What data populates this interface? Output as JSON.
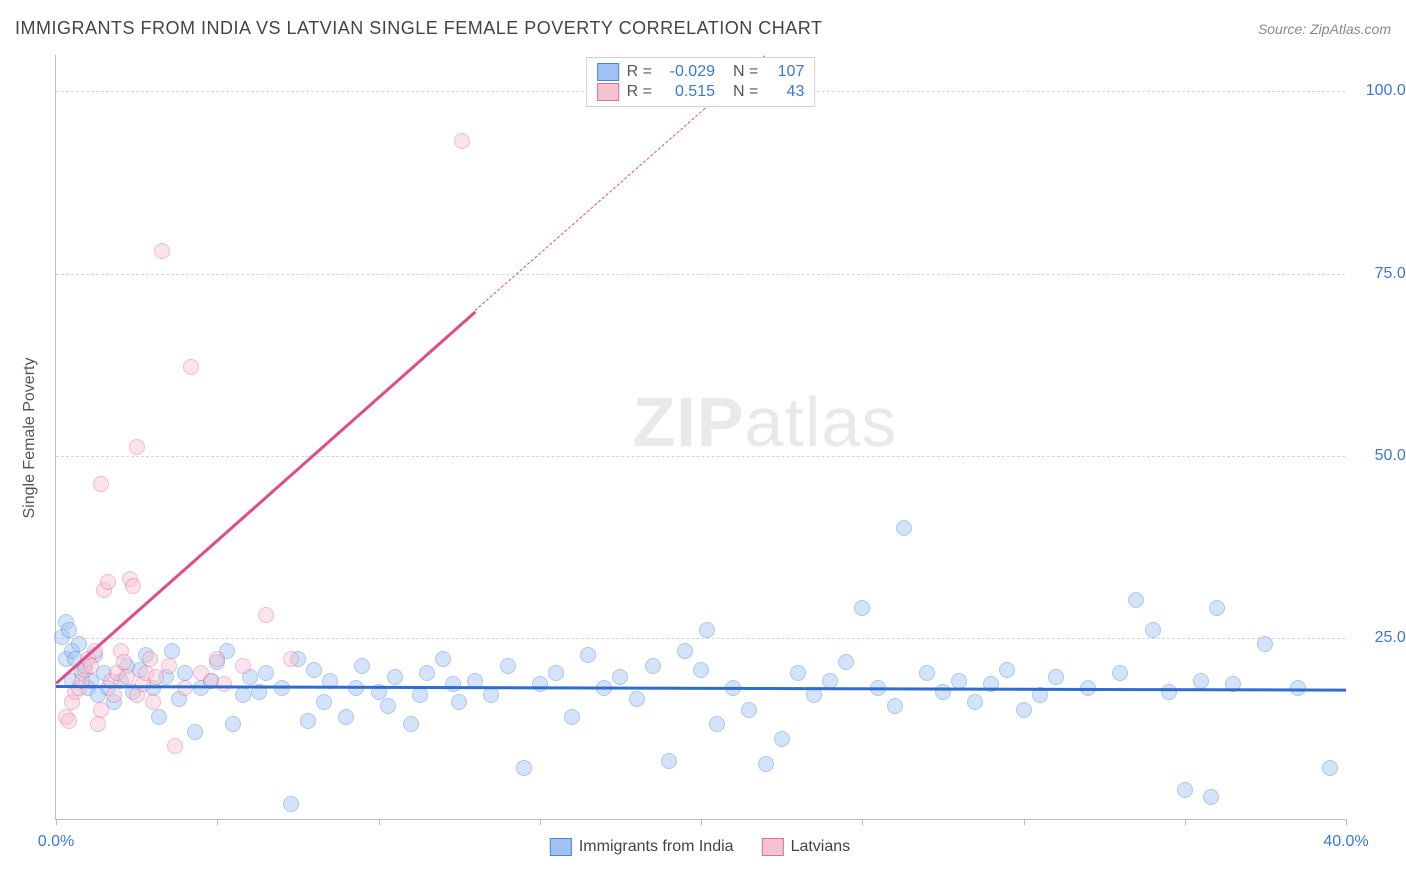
{
  "title": "IMMIGRANTS FROM INDIA VS LATVIAN SINGLE FEMALE POVERTY CORRELATION CHART",
  "source": "Source: ZipAtlas.com",
  "watermark": "ZIPatlas",
  "y_axis_title": "Single Female Poverty",
  "chart": {
    "type": "scatter",
    "xlim": [
      0,
      40
    ],
    "ylim": [
      0,
      105
    ],
    "xtick_positions": [
      0,
      5,
      10,
      15,
      20,
      25,
      30,
      35,
      40
    ],
    "xtick_labels": {
      "0": "0.0%",
      "40": "40.0%"
    },
    "ytick_positions": [
      25,
      50,
      75,
      100
    ],
    "ytick_labels": [
      "25.0%",
      "50.0%",
      "75.0%",
      "100.0%"
    ],
    "grid_color": "#d5d5d5",
    "grid_dash": true,
    "background_color": "#ffffff",
    "point_radius": 8,
    "point_opacity": 0.45,
    "series": [
      {
        "name": "Immigrants from India",
        "color_fill": "#9fc2f2",
        "color_stroke": "#4c86d6",
        "r": -0.029,
        "n": 107,
        "trendline": {
          "x0": 0,
          "y0": 18.5,
          "x1": 40,
          "y1": 18.0,
          "color": "#2e6cd0",
          "width": 2.5
        },
        "points": [
          [
            0.2,
            25
          ],
          [
            0.3,
            27
          ],
          [
            0.3,
            22
          ],
          [
            0.4,
            26
          ],
          [
            0.5,
            23
          ],
          [
            0.5,
            19
          ],
          [
            0.6,
            22
          ],
          [
            0.7,
            24
          ],
          [
            0.8,
            20
          ],
          [
            0.9,
            21
          ],
          [
            1.0,
            18
          ],
          [
            1.1,
            19
          ],
          [
            1.2,
            22.5
          ],
          [
            1.3,
            17
          ],
          [
            1.5,
            20
          ],
          [
            1.6,
            18
          ],
          [
            1.8,
            16
          ],
          [
            2.0,
            19
          ],
          [
            2.2,
            21
          ],
          [
            2.4,
            17.5
          ],
          [
            2.6,
            20.5
          ],
          [
            2.8,
            22.5
          ],
          [
            3.0,
            18
          ],
          [
            3.2,
            14
          ],
          [
            3.4,
            19.5
          ],
          [
            3.6,
            23
          ],
          [
            3.8,
            16.5
          ],
          [
            4.0,
            20
          ],
          [
            4.3,
            12
          ],
          [
            4.5,
            18
          ],
          [
            4.8,
            19
          ],
          [
            5.0,
            21.5
          ],
          [
            5.3,
            23
          ],
          [
            5.5,
            13
          ],
          [
            5.8,
            17
          ],
          [
            6.0,
            19.5
          ],
          [
            6.3,
            17.5
          ],
          [
            6.5,
            20
          ],
          [
            7.0,
            18
          ],
          [
            7.3,
            2
          ],
          [
            7.5,
            22
          ],
          [
            7.8,
            13.5
          ],
          [
            8.0,
            20.5
          ],
          [
            8.3,
            16
          ],
          [
            8.5,
            19
          ],
          [
            9.0,
            14
          ],
          [
            9.3,
            18
          ],
          [
            9.5,
            21
          ],
          [
            10.0,
            17.5
          ],
          [
            10.3,
            15.5
          ],
          [
            10.5,
            19.5
          ],
          [
            11.0,
            13
          ],
          [
            11.3,
            17
          ],
          [
            11.5,
            20
          ],
          [
            12.0,
            22
          ],
          [
            12.3,
            18.5
          ],
          [
            12.5,
            16
          ],
          [
            13.0,
            19
          ],
          [
            13.5,
            17
          ],
          [
            14.0,
            21
          ],
          [
            14.5,
            7
          ],
          [
            15.0,
            18.5
          ],
          [
            15.5,
            20
          ],
          [
            16.0,
            14
          ],
          [
            16.5,
            22.5
          ],
          [
            17.0,
            18
          ],
          [
            17.5,
            19.5
          ],
          [
            18.0,
            16.5
          ],
          [
            18.5,
            21
          ],
          [
            19.0,
            8
          ],
          [
            19.5,
            23
          ],
          [
            20.0,
            20.5
          ],
          [
            20.2,
            26
          ],
          [
            20.5,
            13
          ],
          [
            21.0,
            18
          ],
          [
            21.5,
            15
          ],
          [
            22.0,
            7.5
          ],
          [
            22.5,
            11
          ],
          [
            23.0,
            20
          ],
          [
            23.5,
            17
          ],
          [
            24.0,
            19
          ],
          [
            24.5,
            21.5
          ],
          [
            25.0,
            29
          ],
          [
            25.5,
            18
          ],
          [
            26.0,
            15.5
          ],
          [
            26.3,
            40
          ],
          [
            27.0,
            20
          ],
          [
            27.5,
            17.5
          ],
          [
            28.0,
            19
          ],
          [
            28.5,
            16
          ],
          [
            29.0,
            18.5
          ],
          [
            29.5,
            20.5
          ],
          [
            30.0,
            15
          ],
          [
            30.5,
            17
          ],
          [
            31.0,
            19.5
          ],
          [
            32.0,
            18
          ],
          [
            33.0,
            20
          ],
          [
            33.5,
            30
          ],
          [
            34.0,
            26
          ],
          [
            34.5,
            17.5
          ],
          [
            35.0,
            4
          ],
          [
            35.5,
            19
          ],
          [
            35.8,
            3
          ],
          [
            36.0,
            29
          ],
          [
            36.5,
            18.5
          ],
          [
            37.5,
            24
          ],
          [
            38.5,
            18
          ],
          [
            39.5,
            7
          ]
        ]
      },
      {
        "name": "Latvians",
        "color_fill": "#f4c3d1",
        "color_stroke": "#e76a9c",
        "r": 0.515,
        "n": 43,
        "trendline": {
          "x0": 0,
          "y0": 19,
          "x1": 13,
          "y1": 70,
          "color": "#e14b88",
          "width": 2.5,
          "dashed_extend": {
            "x1": 22,
            "y1": 105
          }
        },
        "points": [
          [
            0.3,
            14
          ],
          [
            0.4,
            13.5
          ],
          [
            0.5,
            16
          ],
          [
            0.6,
            17.5
          ],
          [
            0.7,
            18
          ],
          [
            0.8,
            19
          ],
          [
            0.9,
            20.5
          ],
          [
            1.0,
            22
          ],
          [
            1.1,
            21
          ],
          [
            1.2,
            23
          ],
          [
            1.3,
            13
          ],
          [
            1.4,
            15
          ],
          [
            1.4,
            46
          ],
          [
            1.5,
            31.5
          ],
          [
            1.6,
            32.5
          ],
          [
            1.7,
            19
          ],
          [
            1.8,
            17
          ],
          [
            1.9,
            20
          ],
          [
            2.0,
            23
          ],
          [
            2.1,
            21.5
          ],
          [
            2.2,
            19.5
          ],
          [
            2.3,
            33
          ],
          [
            2.4,
            32
          ],
          [
            2.5,
            17
          ],
          [
            2.5,
            51
          ],
          [
            2.7,
            18.5
          ],
          [
            2.8,
            20
          ],
          [
            2.9,
            22
          ],
          [
            3.0,
            16
          ],
          [
            3.1,
            19.5
          ],
          [
            3.3,
            78
          ],
          [
            3.5,
            21
          ],
          [
            3.7,
            10
          ],
          [
            4.0,
            18
          ],
          [
            4.2,
            62
          ],
          [
            4.5,
            20
          ],
          [
            4.8,
            19
          ],
          [
            5.0,
            22
          ],
          [
            5.2,
            18.5
          ],
          [
            5.8,
            21
          ],
          [
            6.5,
            28
          ],
          [
            7.3,
            22
          ],
          [
            12.6,
            93
          ]
        ]
      }
    ],
    "legend_bottom": [
      {
        "label": "Immigrants from India",
        "fill": "#9fc2f2",
        "stroke": "#4c86d6"
      },
      {
        "label": "Latvians",
        "fill": "#f4c3d1",
        "stroke": "#e76a9c"
      }
    ]
  }
}
